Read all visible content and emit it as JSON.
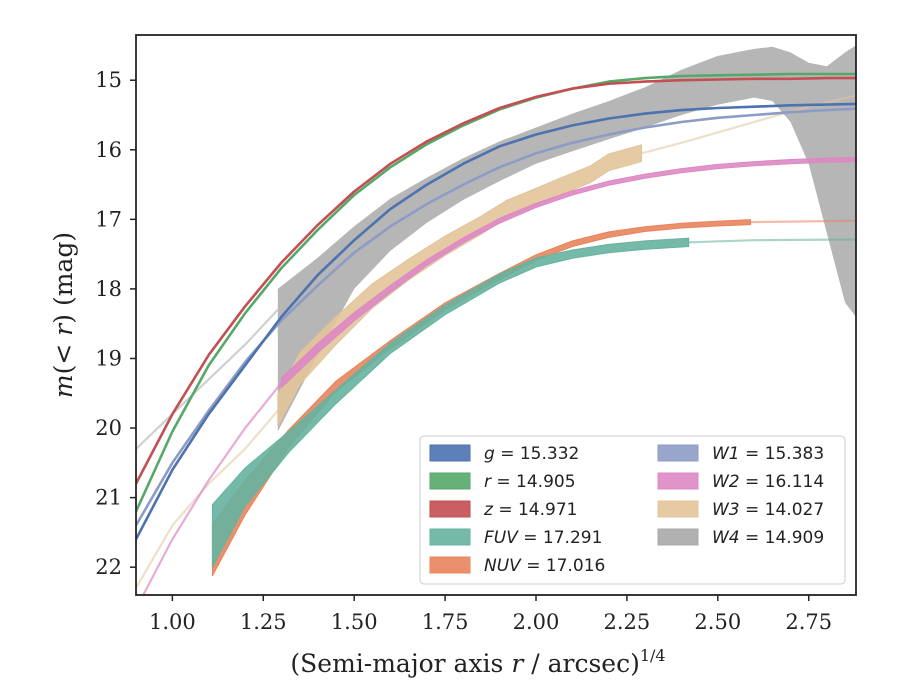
{
  "chart_data": {
    "type": "line",
    "xlabel": "(Semi-major axis r / arcsec)^{1/4}",
    "ylabel": "m(< r) (mag)",
    "xlim": [
      0.9,
      2.88
    ],
    "ylim": [
      22.4,
      14.35
    ],
    "y_inverted": true,
    "grid": false,
    "legend_position": "lower-right",
    "xticks": [
      1.0,
      1.25,
      1.5,
      1.75,
      2.0,
      2.25,
      2.5,
      2.75
    ],
    "xtick_labels": [
      "1.00",
      "1.25",
      "1.50",
      "1.75",
      "2.00",
      "2.25",
      "2.50",
      "2.75"
    ],
    "yticks": [
      15,
      16,
      17,
      18,
      19,
      20,
      21,
      22
    ],
    "ytick_labels": [
      "15",
      "16",
      "17",
      "18",
      "19",
      "20",
      "21",
      "22"
    ],
    "series": [
      {
        "name": "g",
        "legend_label": "g = 15.332",
        "color": "#4c72b0",
        "alpha": 1.0,
        "width": 0.06,
        "x": [
          0.9,
          1.0,
          1.1,
          1.2,
          1.3,
          1.4,
          1.5,
          1.6,
          1.7,
          1.8,
          1.9,
          2.0,
          2.1,
          2.2,
          2.3,
          2.4,
          2.5,
          2.6,
          2.7,
          2.8,
          2.88
        ],
        "y": [
          21.6,
          20.6,
          19.8,
          19.1,
          18.4,
          17.8,
          17.3,
          16.85,
          16.5,
          16.2,
          15.95,
          15.78,
          15.65,
          15.55,
          15.48,
          15.43,
          15.4,
          15.38,
          15.36,
          15.35,
          15.34
        ]
      },
      {
        "name": "r",
        "legend_label": "r = 14.905",
        "color": "#55a868",
        "alpha": 1.0,
        "width": 0.06,
        "x": [
          0.9,
          1.0,
          1.1,
          1.2,
          1.3,
          1.4,
          1.5,
          1.6,
          1.7,
          1.8,
          1.9,
          2.0,
          2.1,
          2.2,
          2.3,
          2.4,
          2.5,
          2.6,
          2.7,
          2.8,
          2.88
        ],
        "y": [
          21.2,
          20.05,
          19.1,
          18.35,
          17.7,
          17.15,
          16.65,
          16.25,
          15.92,
          15.65,
          15.42,
          15.25,
          15.12,
          15.02,
          14.97,
          14.94,
          14.93,
          14.92,
          14.91,
          14.91,
          14.91
        ]
      },
      {
        "name": "z",
        "legend_label": "z = 14.971",
        "color": "#c44e52",
        "alpha": 1.0,
        "width": 0.06,
        "x": [
          0.9,
          1.0,
          1.1,
          1.2,
          1.3,
          1.4,
          1.5,
          1.6,
          1.7,
          1.8,
          1.9,
          2.0,
          2.1,
          2.2,
          2.3,
          2.4,
          2.5,
          2.6,
          2.7,
          2.8,
          2.88
        ],
        "y": [
          20.8,
          19.8,
          18.95,
          18.25,
          17.62,
          17.08,
          16.6,
          16.2,
          15.88,
          15.62,
          15.4,
          15.24,
          15.12,
          15.05,
          15.02,
          15.0,
          14.99,
          14.98,
          14.98,
          14.97,
          14.97
        ]
      },
      {
        "name": "FUV",
        "legend_label": "FUV = 17.291",
        "color": "#66b3a0",
        "alpha": 1.0,
        "x": [
          1.11,
          1.2,
          1.32,
          1.45,
          1.6,
          1.75,
          1.9,
          2.0,
          2.1,
          2.2,
          2.3,
          2.42
        ],
        "y": [
          21.55,
          20.85,
          20.2,
          19.55,
          18.85,
          18.3,
          17.85,
          17.62,
          17.5,
          17.42,
          17.37,
          17.33
        ],
        "w": [
          0.9,
          0.55,
          0.3,
          0.2,
          0.15,
          0.14,
          0.13,
          0.13,
          0.12,
          0.12,
          0.12,
          0.12
        ],
        "tail_x": [
          2.42,
          2.6,
          2.88
        ],
        "tail_y": [
          17.33,
          17.3,
          17.29
        ]
      },
      {
        "name": "NUV",
        "legend_label": "NUV = 17.016",
        "color": "#e8845c",
        "alpha": 1.0,
        "x": [
          1.11,
          1.2,
          1.32,
          1.45,
          1.6,
          1.75,
          1.9,
          2.0,
          2.1,
          2.2,
          2.3,
          2.4,
          2.5,
          2.59
        ],
        "y": [
          21.75,
          21.0,
          20.15,
          19.4,
          18.8,
          18.25,
          17.82,
          17.55,
          17.35,
          17.22,
          17.14,
          17.09,
          17.06,
          17.04
        ],
        "w": [
          0.75,
          0.5,
          0.25,
          0.15,
          0.12,
          0.1,
          0.09,
          0.08,
          0.08,
          0.08,
          0.07,
          0.07,
          0.07,
          0.07
        ],
        "tail_x": [
          2.59,
          2.75,
          2.88
        ],
        "tail_y": [
          17.04,
          17.03,
          17.02
        ]
      },
      {
        "name": "W1",
        "legend_label": "W1 = 15.383",
        "color": "#8c9cc4",
        "alpha": 1.0,
        "width": 0.06,
        "x": [
          0.9,
          1.0,
          1.1,
          1.2,
          1.3,
          1.4,
          1.5,
          1.6,
          1.7,
          1.8,
          1.9,
          2.0,
          2.1,
          2.2,
          2.3,
          2.4,
          2.5,
          2.6,
          2.7,
          2.8,
          2.88
        ],
        "y": [
          21.4,
          20.5,
          19.75,
          19.05,
          18.45,
          17.95,
          17.48,
          17.1,
          16.78,
          16.5,
          16.25,
          16.05,
          15.9,
          15.78,
          15.68,
          15.6,
          15.54,
          15.5,
          15.46,
          15.43,
          15.41
        ]
      },
      {
        "name": "W2",
        "legend_label": "W2 = 16.114",
        "color": "#dd88c4",
        "alpha": 1.0,
        "x": [
          0.9,
          1.0,
          1.1,
          1.2,
          1.3,
          1.4,
          1.5,
          1.6,
          1.7,
          1.8,
          1.9,
          2.0,
          2.1,
          2.2,
          2.3,
          2.4,
          2.5,
          2.6,
          2.7,
          2.8,
          2.88
        ],
        "y": [
          22.6,
          21.6,
          20.75,
          20.0,
          19.35,
          18.85,
          18.4,
          18.0,
          17.62,
          17.3,
          17.02,
          16.8,
          16.62,
          16.48,
          16.38,
          16.3,
          16.24,
          16.2,
          16.17,
          16.15,
          16.14
        ],
        "w": [
          0.04,
          0.04,
          0.04,
          0.04,
          0.14,
          0.14,
          0.12,
          0.1,
          0.08,
          0.07,
          0.07,
          0.06,
          0.06,
          0.06,
          0.06,
          0.06,
          0.06,
          0.06,
          0.06,
          0.06,
          0.06
        ],
        "band_from": 1.3
      },
      {
        "name": "W3",
        "legend_label": "W3 = 14.027",
        "color": "#e2c49a",
        "alpha": 1.0,
        "x": [
          1.29,
          1.35,
          1.45,
          1.55,
          1.65,
          1.75,
          1.85,
          1.92,
          2.0,
          2.07,
          2.15,
          2.2,
          2.29
        ],
        "y": [
          19.75,
          19.15,
          18.6,
          18.1,
          17.72,
          17.38,
          17.08,
          16.85,
          16.68,
          16.52,
          16.35,
          16.18,
          16.05
        ],
        "w": [
          0.45,
          0.45,
          0.4,
          0.35,
          0.3,
          0.28,
          0.26,
          0.25,
          0.25,
          0.24,
          0.24,
          0.24,
          0.24
        ],
        "tail_x": [
          2.29,
          2.4,
          2.5,
          2.6,
          2.7,
          2.8,
          2.88
        ],
        "tail_y": [
          16.05,
          15.9,
          15.75,
          15.6,
          15.45,
          15.32,
          15.22
        ],
        "head_x": [
          0.9,
          1.0,
          1.1,
          1.2,
          1.29
        ],
        "head_y": [
          22.3,
          21.4,
          20.8,
          20.3,
          19.75
        ]
      },
      {
        "name": "W4",
        "legend_label": "W4 = 14.909",
        "color": "#a9a9a9",
        "alpha": 1.0,
        "x": [
          1.29,
          1.4,
          1.5,
          1.6,
          1.7,
          1.8,
          1.9,
          2.0,
          2.1,
          2.2,
          2.3,
          2.4,
          2.5,
          2.6,
          2.65,
          2.7,
          2.75,
          2.8,
          2.85,
          2.88
        ],
        "y_top": [
          18.0,
          17.55,
          17.1,
          16.7,
          16.4,
          16.12,
          15.88,
          15.68,
          15.48,
          15.3,
          15.1,
          14.85,
          14.65,
          14.55,
          14.52,
          14.6,
          14.75,
          14.8,
          14.6,
          14.5
        ],
        "y_bot": [
          20.05,
          18.95,
          18.0,
          17.45,
          17.05,
          16.72,
          16.45,
          16.2,
          16.02,
          15.85,
          15.68,
          15.5,
          15.35,
          15.25,
          15.3,
          15.6,
          16.2,
          17.2,
          18.2,
          18.4
        ],
        "head_x": [
          0.9,
          1.0,
          1.1,
          1.2,
          1.29
        ],
        "head_y": [
          20.3,
          19.8,
          19.3,
          18.8,
          18.3
        ]
      }
    ]
  }
}
